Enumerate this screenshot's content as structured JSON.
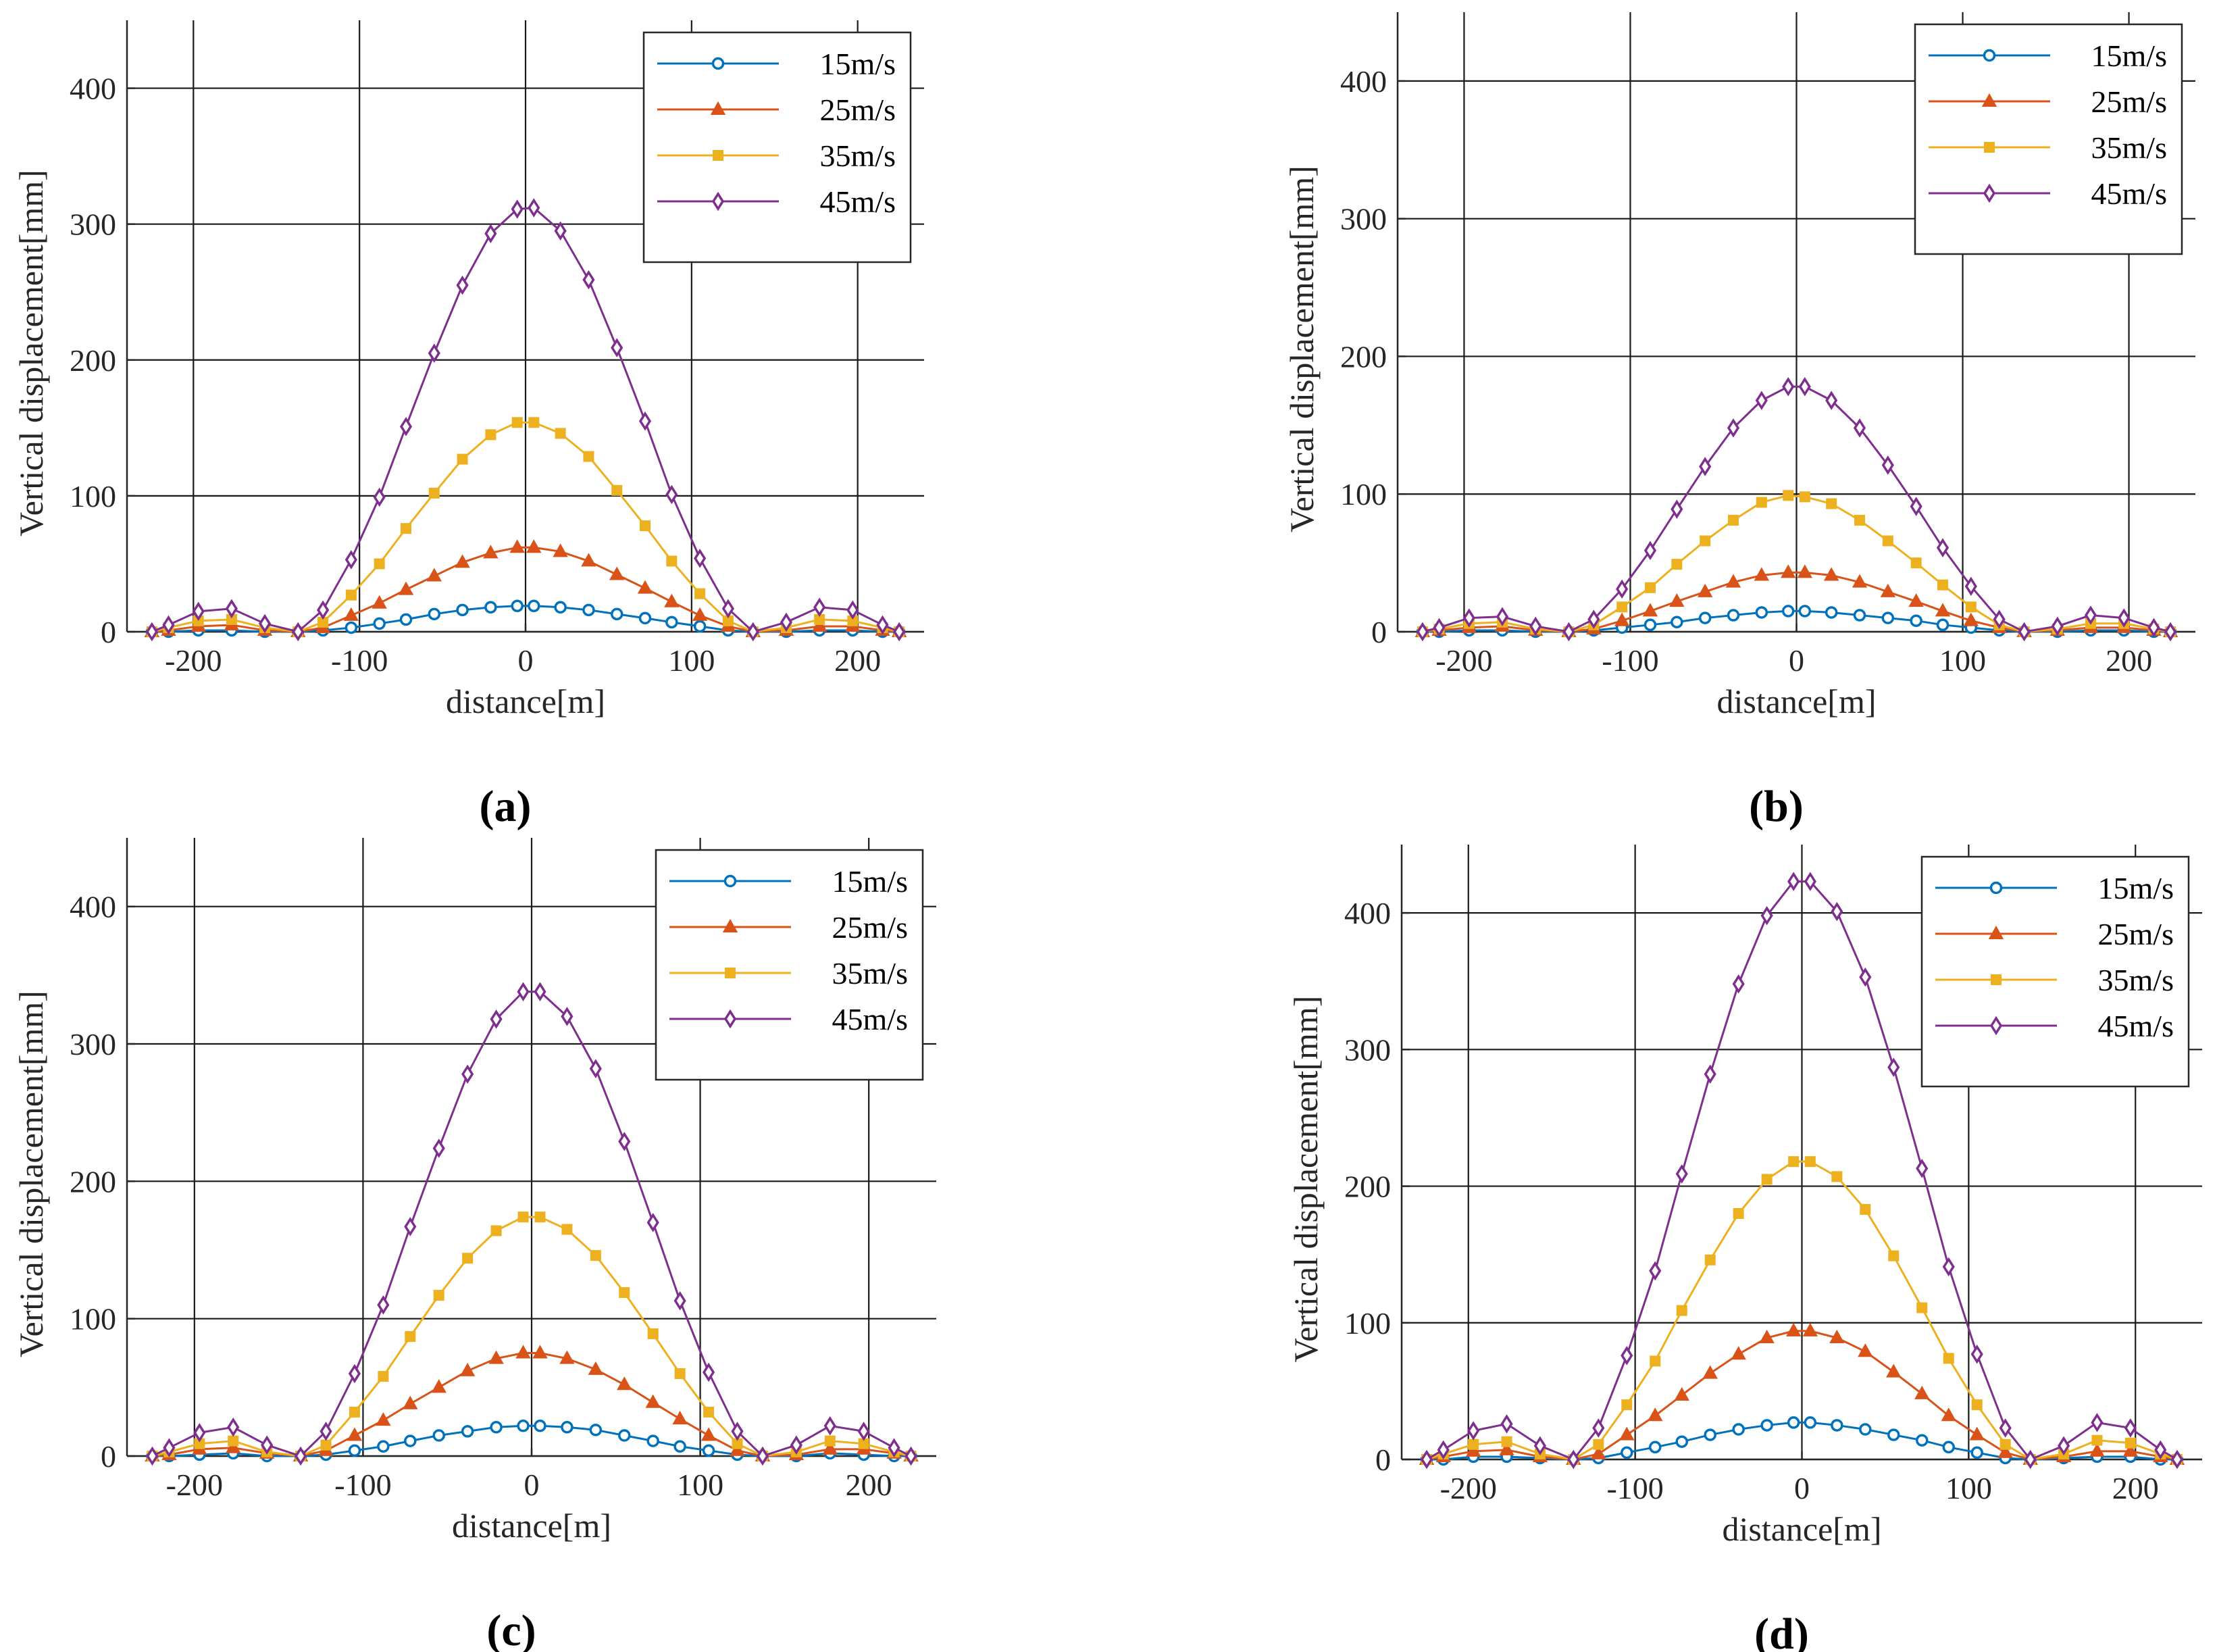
{
  "colors": {
    "15m/s": "#0072bd",
    "25m/s": "#d95319",
    "35m/s": "#edb120",
    "45m/s": "#7e2f8e",
    "grid": "#1a1a1a",
    "axis": "#262626",
    "background": "#ffffff"
  },
  "markers": {
    "15m/s": "circle",
    "25m/s": "triangle",
    "35m/s": "square",
    "45m/s": "diamond"
  },
  "chart_data": [
    {
      "panel_label": "(a)",
      "type": "line",
      "xlabel": "distance[m]",
      "ylabel": "Vertical displacement[mm]",
      "xlim": [
        -240,
        240
      ],
      "ylim": [
        0,
        450
      ],
      "xticks": [
        -200,
        -100,
        0,
        100,
        200
      ],
      "yticks": [
        0,
        100,
        200,
        300,
        400
      ],
      "xtick_labels": [
        "-200",
        "-100",
        "0",
        "100",
        "200"
      ],
      "ytick_labels": [
        "0",
        "100",
        "200",
        "300",
        "400"
      ],
      "grid": true,
      "legend_position": "top-right",
      "x": [
        -225,
        -215,
        -197,
        -177,
        -157,
        -137,
        -122,
        -105,
        -88,
        -72,
        -55,
        -38,
        -21,
        -5,
        5,
        21,
        38,
        55,
        72,
        88,
        105,
        122,
        137,
        157,
        177,
        197,
        215,
        225
      ],
      "series": [
        {
          "name": "15m/s",
          "values": [
            0,
            0,
            1,
            1,
            0,
            0,
            1,
            3,
            6,
            9,
            13,
            16,
            18,
            19,
            19,
            18,
            16,
            13,
            10,
            7,
            4,
            1,
            0,
            0,
            1,
            1,
            0,
            0
          ]
        },
        {
          "name": "25m/s",
          "values": [
            0,
            1,
            4,
            5,
            1,
            0,
            3,
            12,
            21,
            31,
            41,
            51,
            58,
            62,
            62,
            59,
            52,
            42,
            32,
            22,
            12,
            4,
            0,
            1,
            4,
            4,
            1,
            0
          ]
        },
        {
          "name": "35m/s",
          "values": [
            0,
            3,
            8,
            9,
            3,
            0,
            7,
            27,
            50,
            76,
            102,
            127,
            145,
            154,
            154,
            146,
            129,
            104,
            78,
            52,
            28,
            8,
            0,
            3,
            9,
            8,
            3,
            0
          ]
        },
        {
          "name": "45m/s",
          "values": [
            0,
            5,
            15,
            17,
            6,
            0,
            16,
            53,
            99,
            151,
            205,
            255,
            293,
            311,
            312,
            295,
            259,
            209,
            155,
            101,
            54,
            17,
            0,
            7,
            18,
            16,
            5,
            0
          ]
        }
      ]
    },
    {
      "panel_label": "(b)",
      "type": "line",
      "xlabel": "distance[m]",
      "ylabel": "Vertical displacement[mm]",
      "xlim": [
        -240,
        240
      ],
      "ylim": [
        0,
        450
      ],
      "xticks": [
        -200,
        -100,
        0,
        100,
        200
      ],
      "yticks": [
        0,
        100,
        200,
        300,
        400
      ],
      "xtick_labels": [
        "-200",
        "-100",
        "0",
        "100",
        "200"
      ],
      "ytick_labels": [
        "0",
        "100",
        "200",
        "300",
        "400"
      ],
      "grid": true,
      "legend_position": "top-right",
      "x": [
        -225,
        -215,
        -197,
        -177,
        -157,
        -137,
        -122,
        -105,
        -88,
        -72,
        -55,
        -38,
        -21,
        -5,
        5,
        21,
        38,
        55,
        72,
        88,
        105,
        122,
        137,
        157,
        177,
        197,
        215,
        225
      ],
      "series": [
        {
          "name": "15m/s",
          "values": [
            0,
            0,
            1,
            1,
            0,
            0,
            1,
            3,
            5,
            7,
            10,
            12,
            14,
            15,
            15,
            14,
            12,
            10,
            8,
            5,
            3,
            1,
            0,
            0,
            1,
            1,
            0,
            0
          ]
        },
        {
          "name": "25m/s",
          "values": [
            0,
            1,
            3,
            4,
            1,
            0,
            2,
            8,
            15,
            22,
            29,
            36,
            41,
            43,
            43,
            41,
            36,
            29,
            22,
            15,
            8,
            3,
            0,
            1,
            3,
            3,
            1,
            0
          ]
        },
        {
          "name": "35m/s",
          "values": [
            0,
            2,
            6,
            7,
            2,
            0,
            5,
            18,
            32,
            49,
            66,
            81,
            94,
            99,
            98,
            93,
            81,
            66,
            50,
            34,
            18,
            5,
            0,
            2,
            6,
            6,
            2,
            0
          ]
        },
        {
          "name": "45m/s",
          "values": [
            0,
            3,
            10,
            11,
            4,
            0,
            9,
            31,
            59,
            89,
            120,
            148,
            168,
            178,
            178,
            168,
            148,
            121,
            91,
            61,
            33,
            9,
            0,
            4,
            12,
            10,
            3,
            0
          ]
        }
      ]
    },
    {
      "panel_label": "(c)",
      "type": "line",
      "xlabel": "distance[m]",
      "ylabel": "Vertical displacement[mm]",
      "xlim": [
        -240,
        240
      ],
      "ylim": [
        0,
        450
      ],
      "xticks": [
        -200,
        -100,
        0,
        100,
        200
      ],
      "yticks": [
        0,
        100,
        200,
        300,
        400
      ],
      "xtick_labels": [
        "-200",
        "-100",
        "0",
        "100",
        "200"
      ],
      "ytick_labels": [
        "0",
        "100",
        "200",
        "300",
        "400"
      ],
      "grid": true,
      "legend_position": "top-right",
      "x": [
        -225,
        -215,
        -197,
        -177,
        -157,
        -137,
        -122,
        -105,
        -88,
        -72,
        -55,
        -38,
        -21,
        -5,
        5,
        21,
        38,
        55,
        72,
        88,
        105,
        122,
        137,
        157,
        177,
        197,
        215,
        225
      ],
      "series": [
        {
          "name": "15m/s",
          "values": [
            0,
            0,
            1,
            2,
            0,
            0,
            1,
            4,
            7,
            11,
            15,
            18,
            21,
            22,
            22,
            21,
            19,
            15,
            11,
            7,
            4,
            1,
            0,
            0,
            2,
            1,
            0,
            0
          ]
        },
        {
          "name": "25m/s",
          "values": [
            0,
            1,
            5,
            6,
            2,
            0,
            4,
            15,
            26,
            38,
            50,
            62,
            71,
            75,
            75,
            71,
            63,
            52,
            39,
            27,
            15,
            4,
            0,
            1,
            5,
            5,
            2,
            0
          ]
        },
        {
          "name": "35m/s",
          "values": [
            0,
            3,
            9,
            11,
            3,
            0,
            8,
            32,
            58,
            87,
            117,
            144,
            164,
            174,
            174,
            165,
            146,
            119,
            89,
            60,
            32,
            9,
            0,
            3,
            11,
            9,
            3,
            0
          ]
        },
        {
          "name": "45m/s",
          "values": [
            0,
            6,
            17,
            21,
            8,
            0,
            18,
            60,
            110,
            167,
            224,
            278,
            318,
            338,
            338,
            320,
            282,
            229,
            170,
            113,
            61,
            18,
            0,
            8,
            22,
            18,
            6,
            0
          ]
        }
      ]
    },
    {
      "panel_label": "(d)",
      "type": "line",
      "xlabel": "distance[m]",
      "ylabel": "Vertical displacement[mm]",
      "xlim": [
        -240,
        240
      ],
      "ylim": [
        0,
        450
      ],
      "xticks": [
        -200,
        -100,
        0,
        100,
        200
      ],
      "yticks": [
        0,
        100,
        200,
        300,
        400
      ],
      "xtick_labels": [
        "-200",
        "-100",
        "0",
        "100",
        "200"
      ],
      "ytick_labels": [
        "0",
        "100",
        "200",
        "300",
        "400"
      ],
      "grid": true,
      "legend_position": "top-right",
      "x": [
        -225,
        -215,
        -197,
        -177,
        -157,
        -137,
        -122,
        -105,
        -88,
        -72,
        -55,
        -38,
        -21,
        -5,
        5,
        21,
        38,
        55,
        72,
        88,
        105,
        122,
        137,
        157,
        177,
        197,
        215,
        225
      ],
      "series": [
        {
          "name": "15m/s",
          "values": [
            0,
            0,
            2,
            2,
            1,
            0,
            1,
            5,
            9,
            13,
            18,
            22,
            25,
            27,
            27,
            25,
            22,
            18,
            14,
            9,
            5,
            1,
            0,
            1,
            2,
            2,
            0,
            0
          ]
        },
        {
          "name": "25m/s",
          "values": [
            0,
            2,
            6,
            7,
            2,
            0,
            4,
            18,
            32,
            47,
            63,
            77,
            89,
            94,
            94,
            89,
            79,
            64,
            48,
            32,
            18,
            5,
            0,
            2,
            6,
            6,
            2,
            0
          ]
        },
        {
          "name": "35m/s",
          "values": [
            0,
            4,
            11,
            13,
            4,
            0,
            11,
            40,
            72,
            109,
            146,
            180,
            205,
            218,
            218,
            207,
            183,
            149,
            111,
            74,
            40,
            11,
            0,
            4,
            14,
            12,
            4,
            0
          ]
        },
        {
          "name": "45m/s",
          "values": [
            0,
            7,
            21,
            26,
            10,
            0,
            23,
            76,
            138,
            209,
            282,
            348,
            398,
            423,
            423,
            401,
            353,
            287,
            213,
            141,
            77,
            23,
            0,
            10,
            27,
            23,
            7,
            0
          ]
        }
      ]
    }
  ]
}
